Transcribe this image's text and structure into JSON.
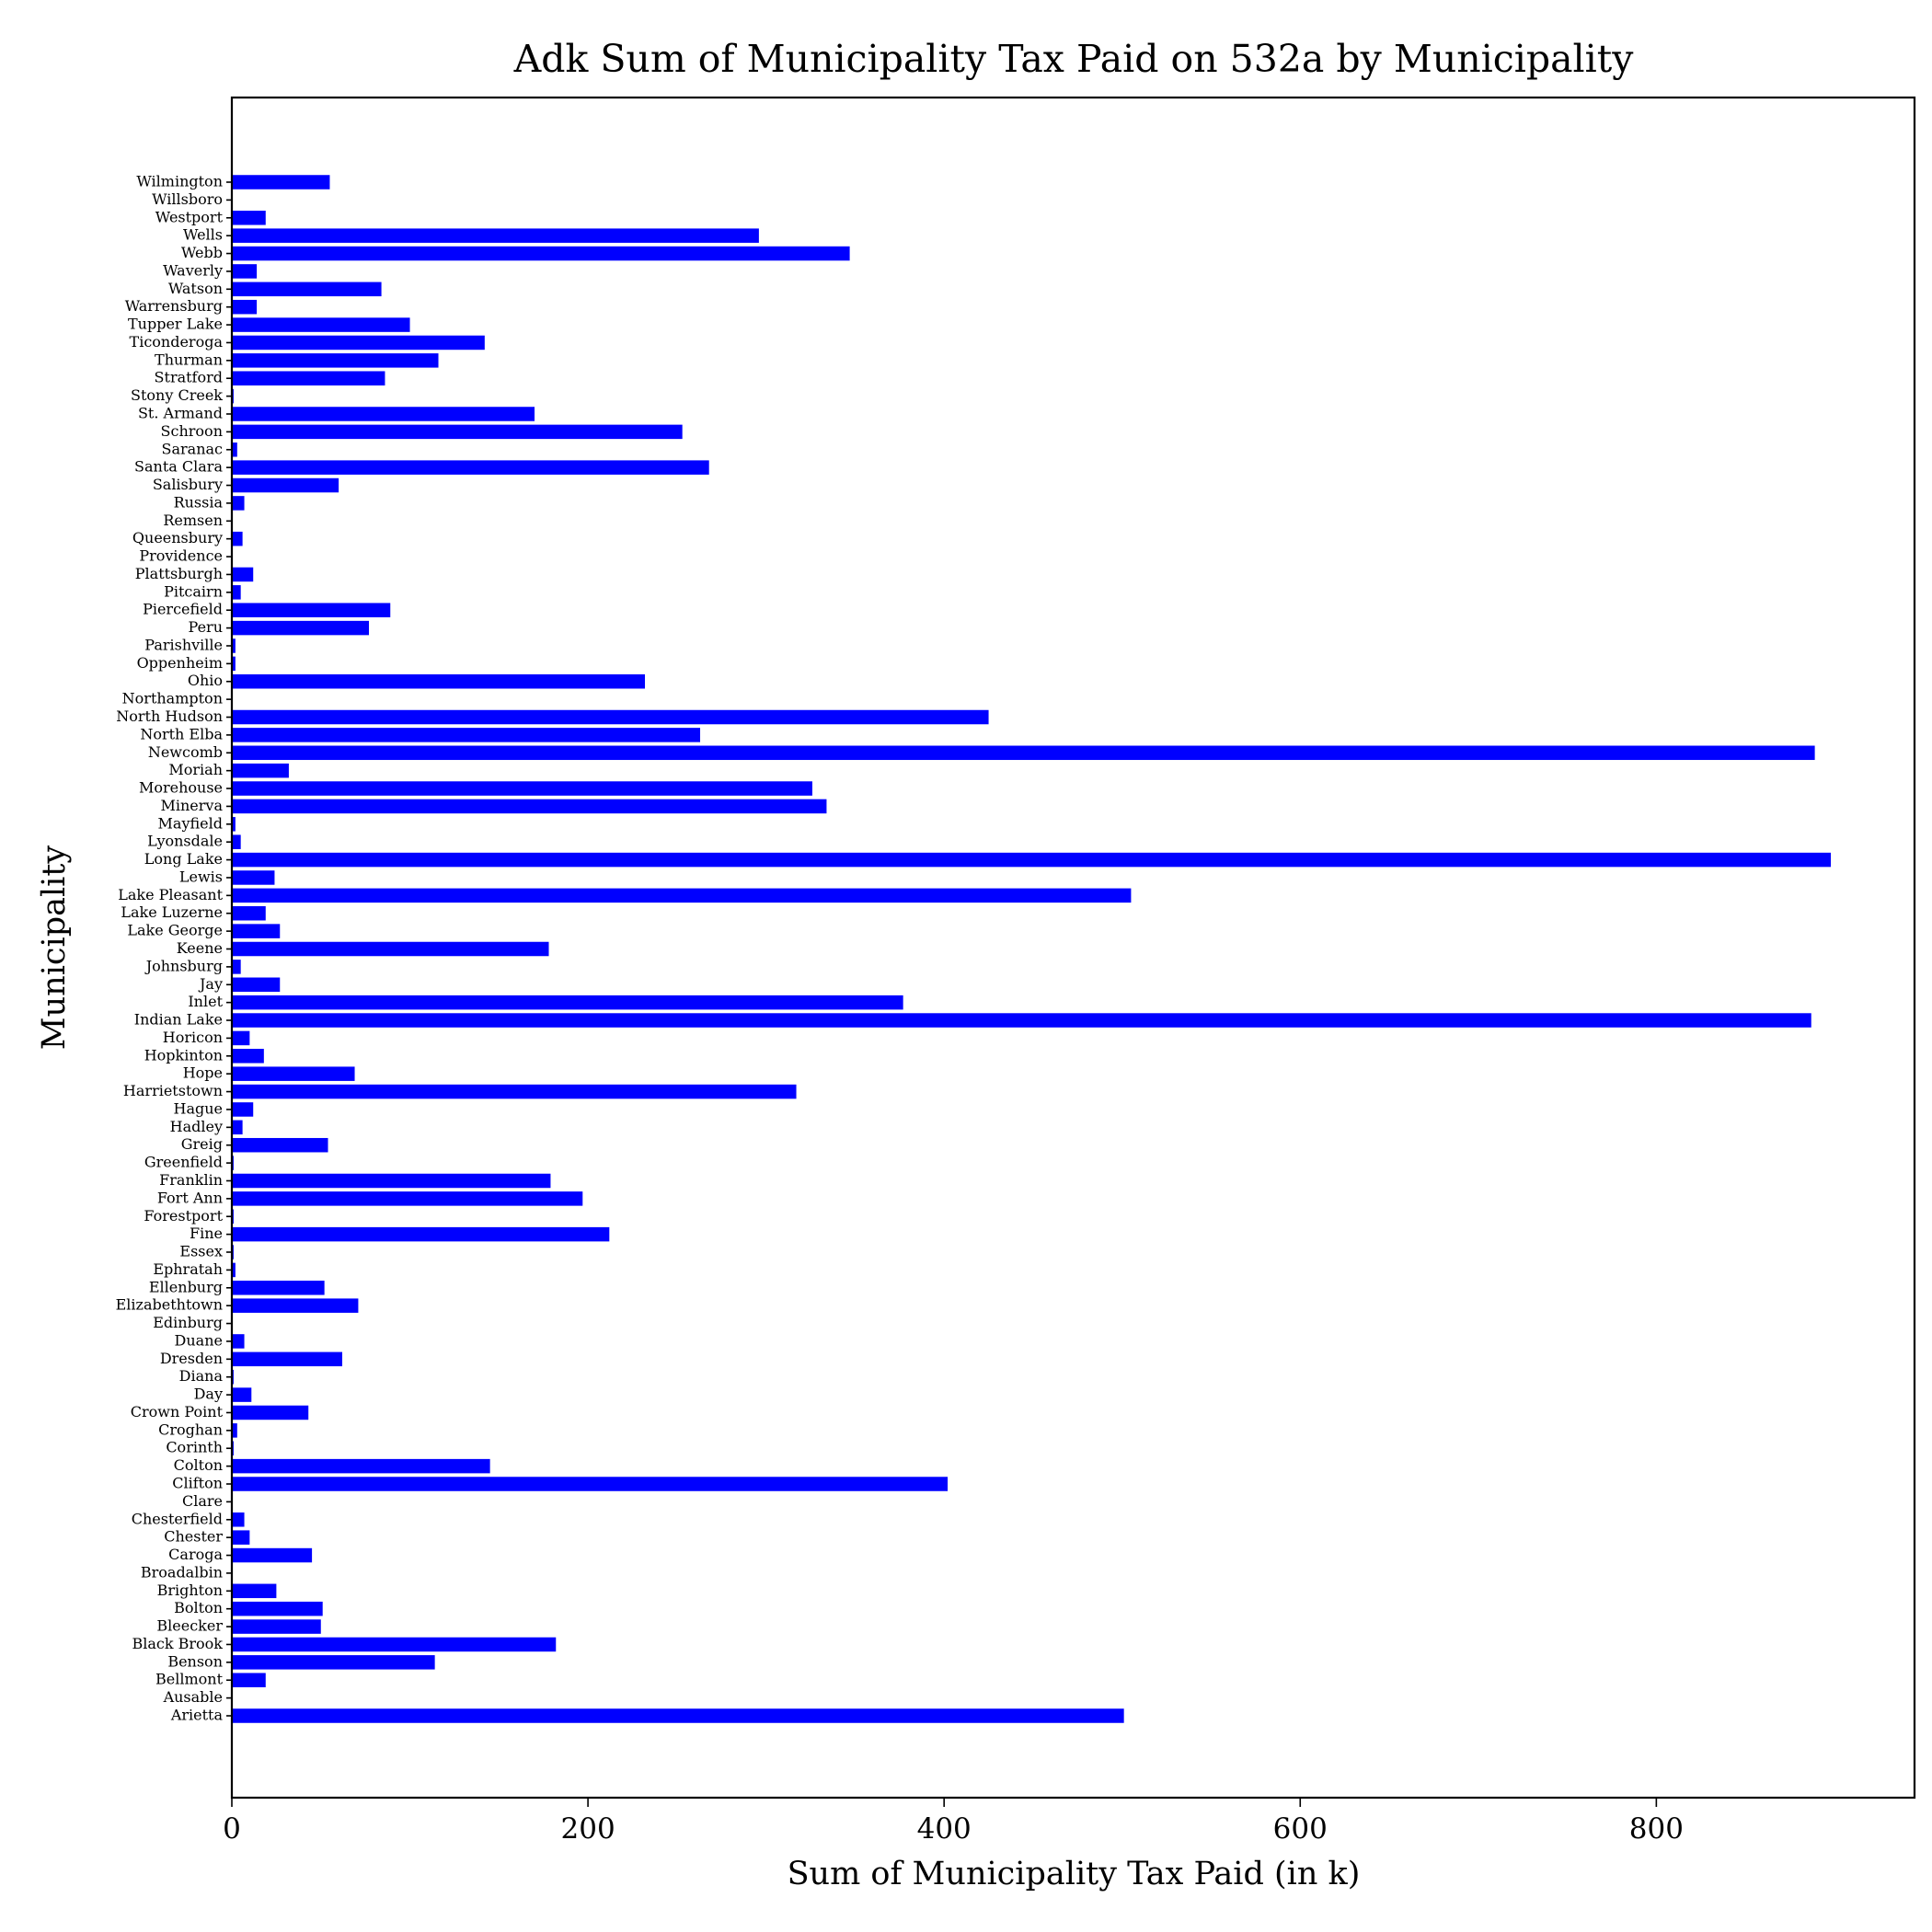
{
  "chart_data": {
    "type": "bar",
    "orientation": "horizontal",
    "title": "Adk Sum of Municipality Tax Paid on 532a by Municipality",
    "xlabel": "Sum of Municipality Tax Paid (in k)",
    "ylabel": "Municipality",
    "xlim": [
      0,
      945
    ],
    "xticks": [
      0,
      200,
      400,
      600,
      800
    ],
    "grid": false,
    "bar_color": "#0000ff",
    "categories": [
      "Arietta",
      "Ausable",
      "Bellmont",
      "Benson",
      "Black Brook",
      "Bleecker",
      "Bolton",
      "Brighton",
      "Broadalbin",
      "Caroga",
      "Chester",
      "Chesterfield",
      "Clare",
      "Clifton",
      "Colton",
      "Corinth",
      "Croghan",
      "Crown Point",
      "Day",
      "Diana",
      "Dresden",
      "Duane",
      "Edinburg",
      "Elizabethtown",
      "Ellenburg",
      "Ephratah",
      "Essex",
      "Fine",
      "Forestport",
      "Fort Ann",
      "Franklin",
      "Greenfield",
      "Greig",
      "Hadley",
      "Hague",
      "Harrietstown",
      "Hope",
      "Hopkinton",
      "Horicon",
      "Indian Lake",
      "Inlet",
      "Jay",
      "Johnsburg",
      "Keene",
      "Lake George",
      "Lake Luzerne",
      "Lake Pleasant",
      "Lewis",
      "Long Lake",
      "Lyonsdale",
      "Mayfield",
      "Minerva",
      "Morehouse",
      "Moriah",
      "Newcomb",
      "North Elba",
      "North Hudson",
      "Northampton",
      "Ohio",
      "Oppenheim",
      "Parishville",
      "Peru",
      "Piercefield",
      "Pitcairn",
      "Plattsburgh",
      "Providence",
      "Queensbury",
      "Remsen",
      "Russia",
      "Salisbury",
      "Santa Clara",
      "Saranac",
      "Schroon",
      "St. Armand",
      "Stony Creek",
      "Stratford",
      "Thurman",
      "Ticonderoga",
      "Tupper Lake",
      "Warrensburg",
      "Watson",
      "Waverly",
      "Webb",
      "Wells",
      "Westport",
      "Willsboro",
      "Wilmington"
    ],
    "values": [
      501,
      0,
      19,
      114,
      182,
      50,
      51,
      25,
      0.5,
      45,
      10,
      7,
      0.5,
      402,
      145,
      1,
      3,
      43,
      11,
      1,
      62,
      7,
      0.5,
      71,
      52,
      2,
      1,
      212,
      1,
      197,
      179,
      1,
      54,
      6,
      12,
      317,
      69,
      18,
      10,
      887,
      377,
      27,
      5,
      178,
      27,
      19,
      505,
      24,
      898,
      5,
      2,
      334,
      326,
      32,
      889,
      263,
      425,
      0.5,
      232,
      2,
      2,
      77,
      89,
      5,
      12,
      0.5,
      6,
      0.5,
      7,
      60,
      268,
      3,
      253,
      170,
      1,
      86,
      116,
      142,
      100,
      14,
      84,
      14,
      347,
      296,
      19,
      0.5,
      55
    ]
  }
}
